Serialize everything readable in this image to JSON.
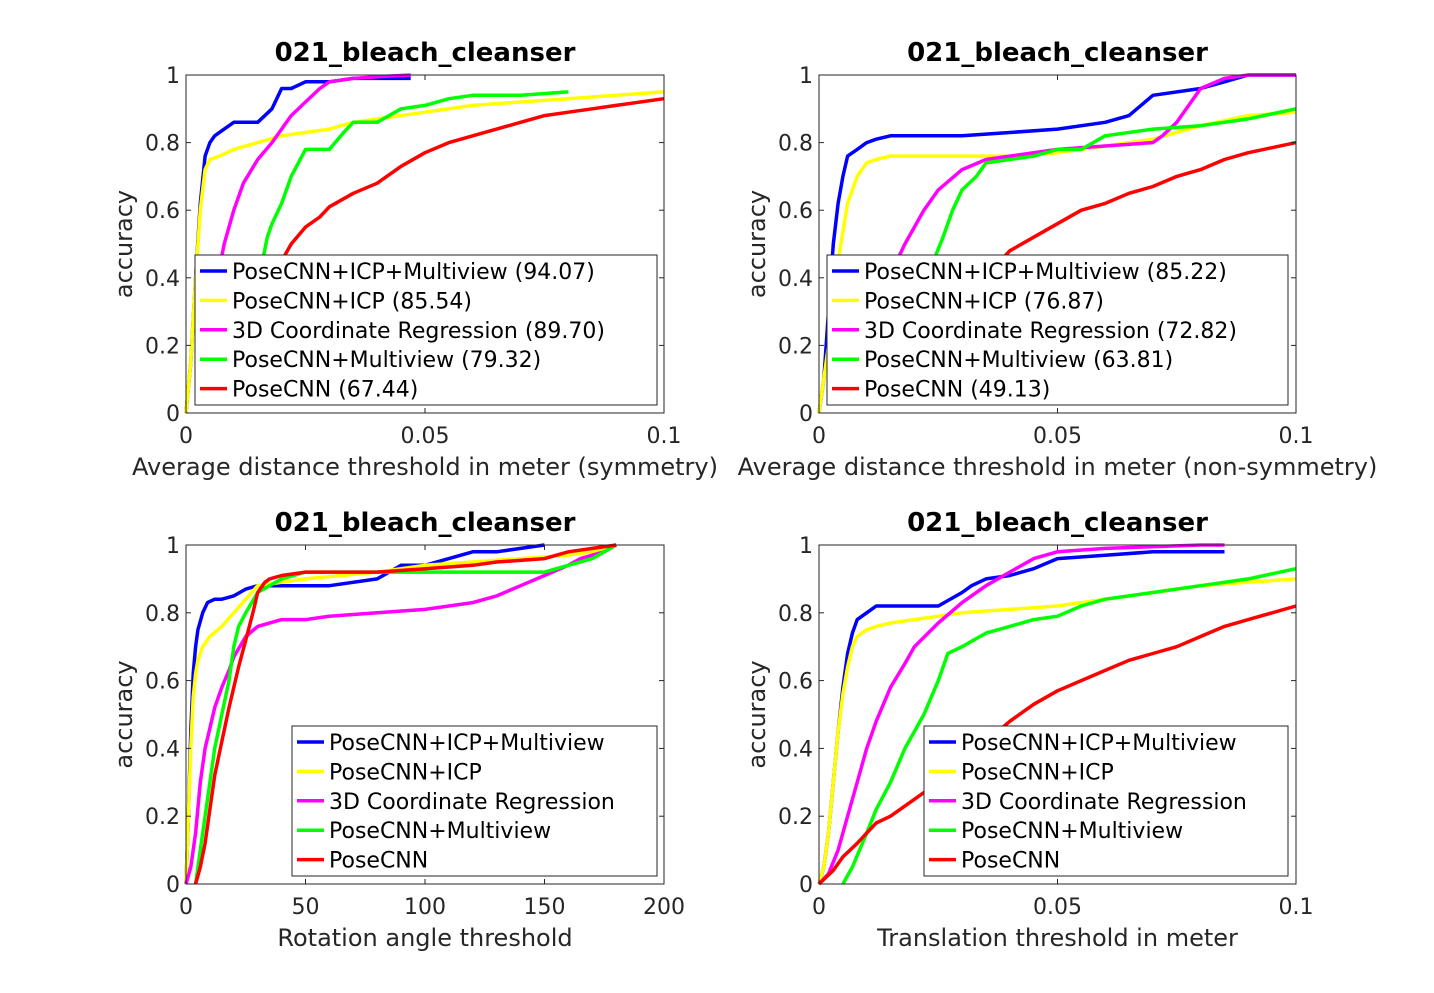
{
  "colors": {
    "PoseCNN+ICP+Multiview": "#0000ff",
    "PoseCNN+ICP": "#ffff00",
    "3D Coordinate Regression": "#ff00ff",
    "PoseCNN+Multiview": "#00ff00",
    "PoseCNN": "#ff0000"
  },
  "chart_data": [
    {
      "type": "line",
      "title": "021_bleach_cleanser",
      "xlabel": "Average distance threshold in meter (symmetry)",
      "ylabel": "accuracy",
      "xlim": [
        0,
        0.1
      ],
      "ylim": [
        0,
        1
      ],
      "xticks": [
        "0",
        "0.05",
        "0.1"
      ],
      "yticks": [
        "0",
        "0.2",
        "0.4",
        "0.6",
        "0.8",
        "1"
      ],
      "legend_position": "bottom-right",
      "series": [
        {
          "name": "PoseCNN+ICP+Multiview",
          "legend": "PoseCNN+ICP+Multiview (94.07)",
          "x": [
            0.0,
            0.001,
            0.002,
            0.003,
            0.004,
            0.005,
            0.006,
            0.008,
            0.01,
            0.012,
            0.015,
            0.018,
            0.02,
            0.022,
            0.025,
            0.028,
            0.03,
            0.035,
            0.04,
            0.047
          ],
          "y": [
            0.0,
            0.15,
            0.4,
            0.62,
            0.76,
            0.8,
            0.82,
            0.84,
            0.86,
            0.86,
            0.86,
            0.9,
            0.96,
            0.96,
            0.98,
            0.98,
            0.98,
            0.99,
            0.99,
            0.99
          ]
        },
        {
          "name": "PoseCNN+ICP",
          "legend": "PoseCNN+ICP (85.54)",
          "x": [
            0.0,
            0.001,
            0.002,
            0.003,
            0.004,
            0.005,
            0.007,
            0.01,
            0.015,
            0.02,
            0.025,
            0.03,
            0.035,
            0.04,
            0.05,
            0.06,
            0.07,
            0.08,
            0.09,
            0.1
          ],
          "y": [
            0.0,
            0.15,
            0.4,
            0.6,
            0.72,
            0.75,
            0.76,
            0.78,
            0.8,
            0.82,
            0.83,
            0.84,
            0.86,
            0.87,
            0.89,
            0.91,
            0.92,
            0.93,
            0.94,
            0.95
          ]
        },
        {
          "name": "3D Coordinate Regression",
          "legend": "3D Coordinate Regression (89.70)",
          "x": [
            0.006,
            0.007,
            0.008,
            0.01,
            0.012,
            0.015,
            0.018,
            0.02,
            0.022,
            0.025,
            0.028,
            0.03,
            0.035,
            0.04,
            0.047
          ],
          "y": [
            0.4,
            0.43,
            0.5,
            0.6,
            0.68,
            0.75,
            0.8,
            0.84,
            0.88,
            0.92,
            0.96,
            0.98,
            0.99,
            0.995,
            1.0
          ]
        },
        {
          "name": "PoseCNN+Multiview",
          "legend": "PoseCNN+Multiview (79.32)",
          "x": [
            0.015,
            0.016,
            0.017,
            0.018,
            0.02,
            0.022,
            0.025,
            0.03,
            0.033,
            0.035,
            0.04,
            0.045,
            0.05,
            0.055,
            0.06,
            0.07,
            0.08
          ],
          "y": [
            0.4,
            0.45,
            0.52,
            0.56,
            0.62,
            0.7,
            0.78,
            0.78,
            0.83,
            0.86,
            0.86,
            0.9,
            0.91,
            0.93,
            0.94,
            0.94,
            0.95
          ]
        },
        {
          "name": "PoseCNN",
          "legend": "PoseCNN (67.44)",
          "x": [
            0.02,
            0.022,
            0.025,
            0.028,
            0.03,
            0.035,
            0.04,
            0.045,
            0.05,
            0.055,
            0.06,
            0.065,
            0.07,
            0.075,
            0.08,
            0.085,
            0.09,
            0.1
          ],
          "y": [
            0.45,
            0.5,
            0.55,
            0.58,
            0.61,
            0.65,
            0.68,
            0.73,
            0.77,
            0.8,
            0.82,
            0.84,
            0.86,
            0.88,
            0.89,
            0.9,
            0.91,
            0.93
          ]
        }
      ]
    },
    {
      "type": "line",
      "title": "021_bleach_cleanser",
      "xlabel": "Average distance threshold in meter (non-symmetry)",
      "ylabel": "accuracy",
      "xlim": [
        0,
        0.1
      ],
      "ylim": [
        0,
        1
      ],
      "xticks": [
        "0",
        "0.05",
        "0.1"
      ],
      "yticks": [
        "0",
        "0.2",
        "0.4",
        "0.6",
        "0.8",
        "1"
      ],
      "legend_position": "bottom-right",
      "series": [
        {
          "name": "PoseCNN+ICP+Multiview",
          "legend": "PoseCNN+ICP+Multiview (85.22)",
          "x": [
            0.0,
            0.001,
            0.002,
            0.003,
            0.004,
            0.005,
            0.006,
            0.008,
            0.01,
            0.012,
            0.015,
            0.02,
            0.03,
            0.04,
            0.05,
            0.06,
            0.065,
            0.07,
            0.08,
            0.085,
            0.09,
            0.1
          ],
          "y": [
            0.0,
            0.1,
            0.3,
            0.5,
            0.62,
            0.7,
            0.76,
            0.78,
            0.8,
            0.81,
            0.82,
            0.82,
            0.82,
            0.83,
            0.84,
            0.86,
            0.88,
            0.94,
            0.96,
            0.98,
            1.0,
            1.0
          ]
        },
        {
          "name": "PoseCNN+ICP",
          "legend": "PoseCNN+ICP (76.87)",
          "x": [
            0.0,
            0.002,
            0.004,
            0.006,
            0.008,
            0.01,
            0.012,
            0.015,
            0.02,
            0.03,
            0.04,
            0.05,
            0.06,
            0.07,
            0.08,
            0.09,
            0.1
          ],
          "y": [
            0.0,
            0.2,
            0.45,
            0.62,
            0.7,
            0.74,
            0.75,
            0.76,
            0.76,
            0.76,
            0.76,
            0.77,
            0.79,
            0.81,
            0.85,
            0.88,
            0.89
          ]
        },
        {
          "name": "3D Coordinate Regression",
          "legend": "3D Coordinate Regression (72.82)",
          "x": [
            0.014,
            0.016,
            0.018,
            0.02,
            0.022,
            0.025,
            0.03,
            0.035,
            0.04,
            0.05,
            0.06,
            0.07,
            0.072,
            0.075,
            0.078,
            0.08,
            0.085,
            0.09,
            0.1
          ],
          "y": [
            0.4,
            0.44,
            0.5,
            0.55,
            0.6,
            0.66,
            0.72,
            0.75,
            0.76,
            0.78,
            0.79,
            0.8,
            0.82,
            0.86,
            0.92,
            0.96,
            0.99,
            1.0,
            1.0
          ]
        },
        {
          "name": "PoseCNN+Multiview",
          "legend": "PoseCNN+Multiview (63.81)",
          "x": [
            0.024,
            0.026,
            0.028,
            0.03,
            0.033,
            0.035,
            0.04,
            0.045,
            0.05,
            0.055,
            0.06,
            0.07,
            0.08,
            0.09,
            0.1
          ],
          "y": [
            0.45,
            0.52,
            0.6,
            0.66,
            0.7,
            0.74,
            0.75,
            0.76,
            0.78,
            0.78,
            0.82,
            0.84,
            0.85,
            0.87,
            0.9
          ]
        },
        {
          "name": "PoseCNN",
          "legend": "PoseCNN (49.13)",
          "x": [
            0.038,
            0.04,
            0.045,
            0.05,
            0.055,
            0.06,
            0.065,
            0.07,
            0.075,
            0.08,
            0.085,
            0.09,
            0.1
          ],
          "y": [
            0.45,
            0.48,
            0.52,
            0.56,
            0.6,
            0.62,
            0.65,
            0.67,
            0.7,
            0.72,
            0.75,
            0.77,
            0.8
          ]
        }
      ]
    },
    {
      "type": "line",
      "title": "021_bleach_cleanser",
      "xlabel": "Rotation angle threshold",
      "ylabel": "accuracy",
      "xlim": [
        0,
        200
      ],
      "ylim": [
        0,
        1
      ],
      "xticks": [
        "0",
        "50",
        "100",
        "150",
        "200"
      ],
      "yticks": [
        "0",
        "0.2",
        "0.4",
        "0.6",
        "0.8",
        "1"
      ],
      "legend_position": "bottom-right",
      "series": [
        {
          "name": "PoseCNN+ICP+Multiview",
          "legend": "PoseCNN+ICP+Multiview",
          "x": [
            0,
            1,
            2,
            3,
            4,
            5,
            7,
            9,
            12,
            15,
            20,
            25,
            30,
            40,
            60,
            80,
            90,
            100,
            110,
            120,
            130,
            140,
            150
          ],
          "y": [
            0,
            0.2,
            0.45,
            0.62,
            0.7,
            0.75,
            0.8,
            0.83,
            0.84,
            0.84,
            0.85,
            0.87,
            0.88,
            0.88,
            0.88,
            0.9,
            0.94,
            0.94,
            0.96,
            0.98,
            0.98,
            0.99,
            1.0
          ]
        },
        {
          "name": "PoseCNN+ICP",
          "legend": "PoseCNN+ICP",
          "x": [
            0,
            1,
            2,
            3,
            4,
            5,
            7,
            10,
            15,
            20,
            25,
            30,
            50,
            80,
            100,
            120,
            140,
            160,
            170,
            175,
            180
          ],
          "y": [
            0,
            0.2,
            0.4,
            0.55,
            0.62,
            0.66,
            0.7,
            0.73,
            0.76,
            0.8,
            0.84,
            0.88,
            0.9,
            0.92,
            0.94,
            0.95,
            0.96,
            0.97,
            0.98,
            0.99,
            1.0
          ]
        },
        {
          "name": "3D Coordinate Regression",
          "legend": "3D Coordinate Regression",
          "x": [
            0,
            2,
            4,
            6,
            8,
            10,
            12,
            15,
            18,
            20,
            25,
            30,
            40,
            50,
            60,
            80,
            100,
            120,
            130,
            140,
            150,
            160,
            165,
            170,
            175,
            180
          ],
          "y": [
            0,
            0.05,
            0.15,
            0.3,
            0.4,
            0.46,
            0.52,
            0.58,
            0.63,
            0.67,
            0.73,
            0.76,
            0.78,
            0.78,
            0.79,
            0.8,
            0.81,
            0.83,
            0.85,
            0.88,
            0.91,
            0.94,
            0.96,
            0.97,
            0.98,
            1.0
          ]
        },
        {
          "name": "PoseCNN+Multiview",
          "legend": "PoseCNN+Multiview",
          "x": [
            4,
            6,
            8,
            10,
            12,
            15,
            18,
            20,
            22,
            25,
            30,
            40,
            50,
            80,
            100,
            130,
            150,
            160,
            170,
            180
          ],
          "y": [
            0,
            0.1,
            0.2,
            0.3,
            0.4,
            0.5,
            0.6,
            0.7,
            0.76,
            0.8,
            0.86,
            0.9,
            0.92,
            0.92,
            0.92,
            0.92,
            0.92,
            0.94,
            0.96,
            1.0
          ]
        },
        {
          "name": "PoseCNN",
          "legend": "PoseCNN",
          "x": [
            4,
            6,
            8,
            10,
            12,
            15,
            18,
            20,
            22,
            25,
            28,
            30,
            33,
            35,
            40,
            50,
            60,
            80,
            100,
            120,
            130,
            150,
            160,
            170,
            180
          ],
          "y": [
            0,
            0.05,
            0.12,
            0.22,
            0.32,
            0.42,
            0.52,
            0.58,
            0.64,
            0.72,
            0.8,
            0.86,
            0.89,
            0.9,
            0.91,
            0.92,
            0.92,
            0.92,
            0.93,
            0.94,
            0.95,
            0.96,
            0.98,
            0.99,
            1.0
          ]
        }
      ]
    },
    {
      "type": "line",
      "title": "021_bleach_cleanser",
      "xlabel": "Translation threshold in meter",
      "ylabel": "accuracy",
      "xlim": [
        0,
        0.1
      ],
      "ylim": [
        0,
        1
      ],
      "xticks": [
        "0",
        "0.05",
        "0.1"
      ],
      "yticks": [
        "0",
        "0.2",
        "0.4",
        "0.6",
        "0.8",
        "1"
      ],
      "legend_position": "bottom-right",
      "series": [
        {
          "name": "PoseCNN+ICP+Multiview",
          "legend": "PoseCNN+ICP+Multiview",
          "x": [
            0.0,
            0.001,
            0.002,
            0.003,
            0.004,
            0.005,
            0.006,
            0.007,
            0.008,
            0.01,
            0.012,
            0.015,
            0.02,
            0.025,
            0.03,
            0.032,
            0.035,
            0.04,
            0.045,
            0.05,
            0.06,
            0.07,
            0.08,
            0.085
          ],
          "y": [
            0.0,
            0.05,
            0.15,
            0.3,
            0.45,
            0.58,
            0.68,
            0.74,
            0.78,
            0.8,
            0.82,
            0.82,
            0.82,
            0.82,
            0.86,
            0.88,
            0.9,
            0.91,
            0.93,
            0.96,
            0.97,
            0.98,
            0.98,
            0.98
          ]
        },
        {
          "name": "PoseCNN+ICP",
          "legend": "PoseCNN+ICP",
          "x": [
            0.0,
            0.001,
            0.002,
            0.003,
            0.004,
            0.005,
            0.006,
            0.007,
            0.008,
            0.01,
            0.012,
            0.015,
            0.02,
            0.03,
            0.04,
            0.05,
            0.06,
            0.07,
            0.08,
            0.09,
            0.1
          ],
          "y": [
            0.0,
            0.05,
            0.15,
            0.3,
            0.45,
            0.56,
            0.64,
            0.7,
            0.73,
            0.75,
            0.76,
            0.77,
            0.78,
            0.8,
            0.81,
            0.82,
            0.84,
            0.86,
            0.88,
            0.89,
            0.9
          ]
        },
        {
          "name": "3D Coordinate Regression",
          "legend": "3D Coordinate Regression",
          "x": [
            0.0,
            0.002,
            0.004,
            0.006,
            0.008,
            0.01,
            0.012,
            0.015,
            0.018,
            0.02,
            0.025,
            0.03,
            0.035,
            0.04,
            0.045,
            0.05,
            0.06,
            0.07,
            0.08,
            0.085
          ],
          "y": [
            0.0,
            0.03,
            0.1,
            0.2,
            0.3,
            0.4,
            0.48,
            0.58,
            0.65,
            0.7,
            0.77,
            0.83,
            0.88,
            0.92,
            0.96,
            0.98,
            0.99,
            0.995,
            1.0,
            1.0
          ]
        },
        {
          "name": "PoseCNN+Multiview",
          "legend": "PoseCNN+Multiview",
          "x": [
            0.005,
            0.007,
            0.01,
            0.012,
            0.015,
            0.018,
            0.02,
            0.022,
            0.025,
            0.027,
            0.03,
            0.035,
            0.04,
            0.045,
            0.05,
            0.055,
            0.06,
            0.065,
            0.07,
            0.08,
            0.09,
            0.1
          ],
          "y": [
            0.0,
            0.05,
            0.15,
            0.22,
            0.3,
            0.4,
            0.45,
            0.5,
            0.6,
            0.68,
            0.7,
            0.74,
            0.76,
            0.78,
            0.79,
            0.82,
            0.84,
            0.85,
            0.86,
            0.88,
            0.9,
            0.93
          ]
        },
        {
          "name": "PoseCNN",
          "legend": "PoseCNN",
          "x": [
            0.0,
            0.003,
            0.005,
            0.008,
            0.01,
            0.012,
            0.015,
            0.02,
            0.025,
            0.03,
            0.035,
            0.04,
            0.045,
            0.05,
            0.055,
            0.06,
            0.065,
            0.07,
            0.075,
            0.08,
            0.085,
            0.09,
            0.1
          ],
          "y": [
            0.0,
            0.04,
            0.08,
            0.12,
            0.15,
            0.18,
            0.2,
            0.25,
            0.3,
            0.36,
            0.42,
            0.48,
            0.53,
            0.57,
            0.6,
            0.63,
            0.66,
            0.68,
            0.7,
            0.73,
            0.76,
            0.78,
            0.82
          ]
        }
      ]
    }
  ]
}
